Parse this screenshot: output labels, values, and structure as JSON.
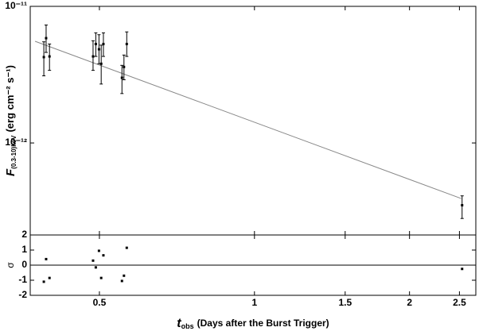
{
  "chart_data": [
    {
      "type": "scatter",
      "y_label": [
        "F",
        "(0.3-10)keV",
        "(erg cm⁻² s⁻¹)"
      ],
      "log_x": true,
      "log_y": true,
      "xlim": [
        0.367,
        2.69
      ],
      "xticks": [
        0.5,
        1,
        1.5,
        2,
        2.5
      ],
      "ylim": [
        2.12e-13,
        1e-11
      ],
      "yticks": [
        {
          "value": 1e-11,
          "label": "10⁻¹¹"
        },
        {
          "value": 1e-12,
          "label": "10⁻¹²"
        }
      ],
      "color": "#000000",
      "x": [
        0.39,
        0.394,
        0.4,
        0.486,
        0.492,
        0.499,
        0.504,
        0.509,
        0.553,
        0.558,
        0.565,
        2.53
      ],
      "values": [
        4.25e-12,
        5.85e-12,
        4.3e-12,
        4.3e-12,
        5.3e-12,
        4.85e-12,
        3.8e-12,
        5.3e-12,
        3e-12,
        3.6e-12,
        5.3e-12,
        3.5e-13
      ],
      "y_low": [
        3.1e-12,
        4.6e-12,
        3.4e-12,
        3.4e-12,
        4.3e-12,
        3.8e-12,
        2.7e-12,
        4.3e-12,
        2.3e-12,
        2.9e-12,
        4.3e-12,
        2.8e-13
      ],
      "y_high": [
        5.5e-12,
        7.3e-12,
        5.3e-12,
        5.6e-12,
        6.4e-12,
        6.2e-12,
        5.2e-12,
        6.4e-12,
        3.7e-12,
        4.4e-12,
        6.5e-12,
        4.1e-13
      ],
      "fit": {
        "color": "#888888",
        "x": [
          0.375,
          2.52
        ],
        "values": [
          5.55e-12,
          3.92e-13
        ]
      }
    },
    {
      "type": "scatter",
      "y_label": "σ",
      "x_label": [
        "t",
        "obs",
        "(Days after the Burst Trigger)"
      ],
      "log_x": true,
      "xlim": [
        0.367,
        2.69
      ],
      "xticks": [
        0.5,
        1,
        1.5,
        2,
        2.5
      ],
      "ylim": [
        -2,
        2
      ],
      "yticks": [
        -2,
        -1,
        0,
        1,
        2
      ],
      "color": "#000000",
      "zero_line": 0,
      "x": [
        0.39,
        0.394,
        0.4,
        0.486,
        0.492,
        0.499,
        0.504,
        0.509,
        0.553,
        0.558,
        0.565,
        2.53
      ],
      "values": [
        -1.1,
        0.4,
        -0.85,
        0.3,
        -0.15,
        0.95,
        -0.85,
        0.65,
        -1.05,
        -0.7,
        1.15,
        -0.25
      ]
    }
  ]
}
